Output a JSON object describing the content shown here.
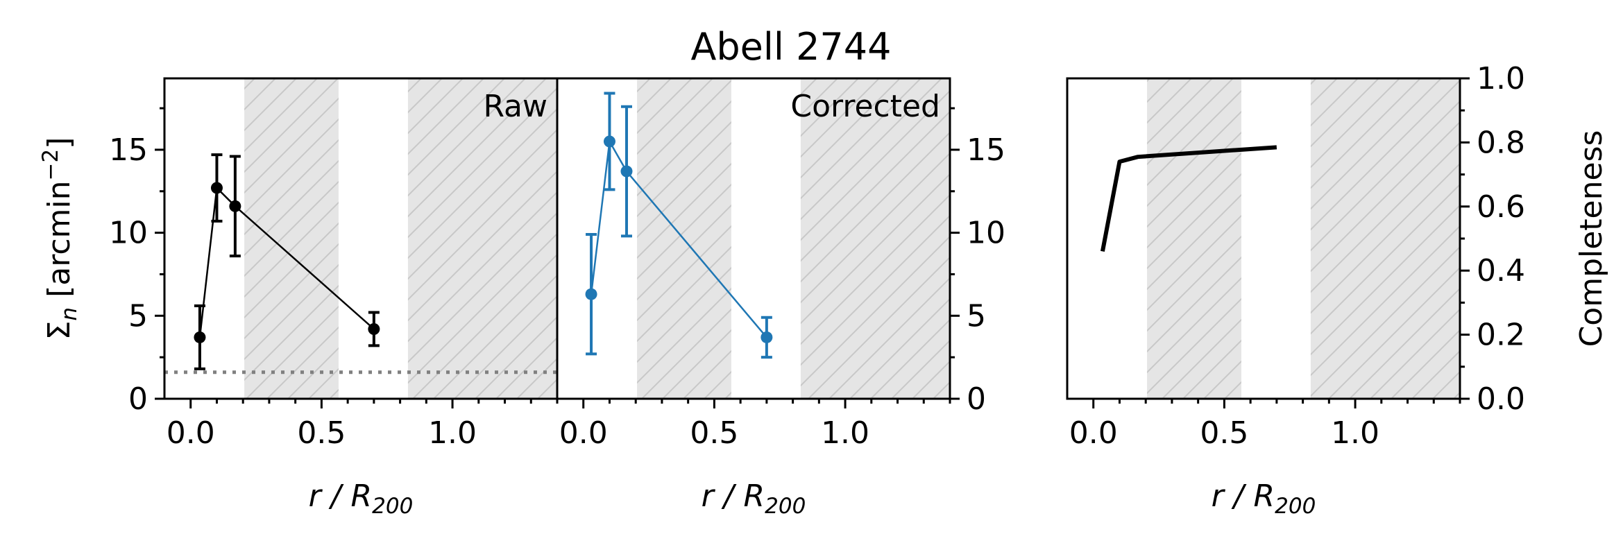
{
  "colors": {
    "raw": "#000000",
    "corrected": "#1f77b4",
    "shade_fill": "#e5e5e5",
    "hatch": "#c8c8c8",
    "background_line": "#808080",
    "completeness_line": "#000000"
  },
  "chart_data": [
    {
      "type": "line",
      "title": "Abell 2744",
      "panel_label": "Raw",
      "xlabel": "r / R200",
      "ylabel": "Σn [arcmin⁻²]",
      "xlim": [
        -0.1,
        1.4
      ],
      "ylim": [
        0,
        19.3
      ],
      "xticks": [
        0.0,
        0.5,
        1.0
      ],
      "xtick_labels": [
        "0.0",
        "0.5",
        "1.0"
      ],
      "yticks": [
        0,
        5,
        10,
        15
      ],
      "ytick_labels": [
        "0",
        "5",
        "10",
        "15"
      ],
      "shaded_regions": [
        [
          0.205,
          0.565
        ],
        [
          0.83,
          1.4
        ]
      ],
      "background_level": 1.6,
      "series": [
        {
          "x": [
            0.035,
            0.1,
            0.17,
            0.7
          ],
          "y": [
            3.7,
            12.7,
            11.6,
            4.2
          ],
          "yerr": [
            [
              1.9,
              1.9
            ],
            [
              2.0,
              2.0
            ],
            [
              3.0,
              3.0
            ],
            [
              1.0,
              1.0
            ]
          ]
        }
      ]
    },
    {
      "type": "line",
      "panel_label": "Corrected",
      "xlabel": "r / R200",
      "xlim": [
        -0.1,
        1.4
      ],
      "ylim": [
        0,
        19.3
      ],
      "xticks": [
        0.0,
        0.5,
        1.0
      ],
      "xtick_labels": [
        "0.0",
        "0.5",
        "1.0"
      ],
      "yticks": [
        0,
        5,
        10,
        15
      ],
      "ytick_labels": [
        "0",
        "5",
        "10",
        "15"
      ],
      "shaded_regions": [
        [
          0.205,
          0.565
        ],
        [
          0.83,
          1.4
        ]
      ],
      "series": [
        {
          "x": [
            0.03,
            0.1,
            0.165,
            0.7
          ],
          "y": [
            6.3,
            15.5,
            13.7,
            3.7
          ],
          "yerr": [
            [
              3.6,
              3.6
            ],
            [
              2.9,
              2.9
            ],
            [
              3.9,
              3.9
            ],
            [
              1.2,
              1.2
            ]
          ]
        }
      ]
    },
    {
      "type": "line",
      "xlabel": "r / R200",
      "ylabel": "Completeness",
      "xlim": [
        -0.1,
        1.4
      ],
      "ylim": [
        0,
        1.0
      ],
      "xticks": [
        0.0,
        0.5,
        1.0
      ],
      "xtick_labels": [
        "0.0",
        "0.5",
        "1.0"
      ],
      "yticks": [
        0.0,
        0.2,
        0.4,
        0.6,
        0.8,
        1.0
      ],
      "ytick_labels": [
        "0.0",
        "0.2",
        "0.4",
        "0.6",
        "0.8",
        "1.0"
      ],
      "shaded_regions": [
        [
          0.205,
          0.565
        ],
        [
          0.83,
          1.4
        ]
      ],
      "series": [
        {
          "x": [
            0.035,
            0.1,
            0.17,
            0.7
          ],
          "y": [
            0.46,
            0.74,
            0.755,
            0.785
          ]
        }
      ]
    }
  ]
}
